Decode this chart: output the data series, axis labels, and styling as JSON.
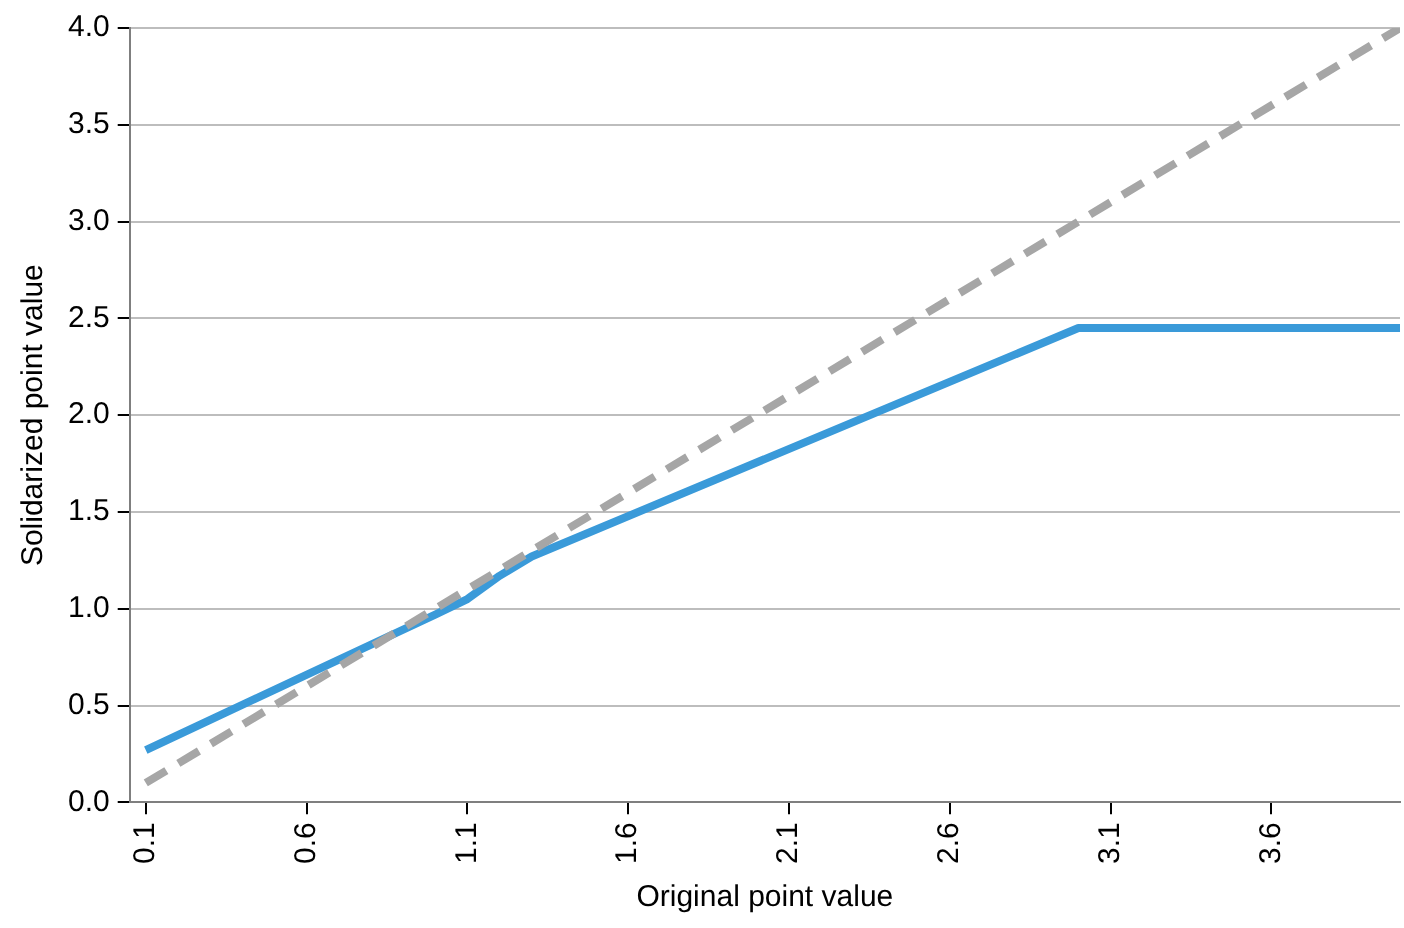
{
  "chart_data": {
    "type": "line",
    "xlabel": "Original point value",
    "ylabel": "Solidarized point value",
    "xlim": [
      0.05,
      4.0
    ],
    "xticks": [
      0.1,
      0.6,
      1.1,
      1.6,
      2.1,
      2.6,
      3.1,
      3.6
    ],
    "ylim": [
      0,
      4
    ],
    "yticks": [
      {
        "value": 0,
        "label": "0.0"
      },
      0.5,
      {
        "value": 1,
        "label": "1.0"
      },
      1.5,
      {
        "value": 2,
        "label": "2.0"
      },
      2.5,
      {
        "value": 3,
        "label": "3.0"
      },
      3.5,
      {
        "value": 4,
        "label": "4.0"
      }
    ],
    "grid": "y",
    "legend": false,
    "marker": "none",
    "series": [
      {
        "color": "#a6a6a6",
        "line_style": "dashed",
        "x": [
          0.1,
          4.0
        ],
        "values": [
          0.1,
          4.0
        ]
      },
      {
        "color": "#3a9ad9",
        "line_style": "solid",
        "x": [
          0.1,
          1.0,
          1.1,
          1.2,
          1.3,
          3.0,
          4.0
        ],
        "values": [
          0.27,
          0.97,
          1.05,
          1.17,
          1.27,
          2.45,
          2.45
        ]
      }
    ]
  }
}
